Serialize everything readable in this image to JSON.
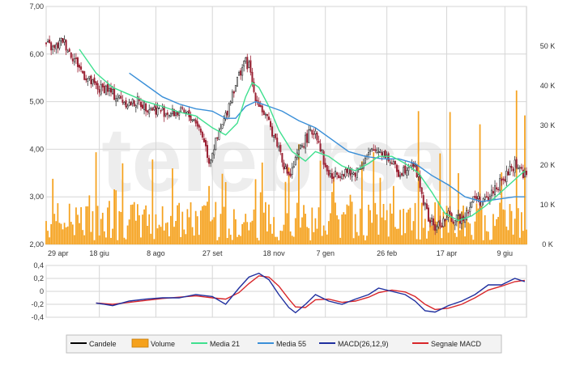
{
  "chart_data": [
    {
      "type": "candlestick",
      "panel": "price",
      "y_ticks": [
        "7,00",
        "6,00",
        "5,00",
        "4,00",
        "3,00",
        "2,00"
      ],
      "y_values": [
        7.0,
        6.0,
        5.0,
        4.0,
        3.0,
        2.0
      ],
      "ylim": [
        2.0,
        7.0
      ],
      "x_ticks": [
        "29 apr",
        "18 giu",
        "8 ago",
        "27 set",
        "18 nov",
        "7 gen",
        "26 feb",
        "17 apr",
        "9 giu"
      ],
      "volume_ticks": [
        "50 K",
        "40 K",
        "30 K",
        "20 K",
        "10 K",
        "0 K"
      ],
      "volume_tick_values": [
        50,
        40,
        30,
        20,
        10,
        0
      ],
      "volume_ylim": [
        0,
        60
      ],
      "colors": {
        "up": "#2f2f2f",
        "down": "#9b2335",
        "volume": "#f5a11c",
        "ma21": "#3fe08f",
        "ma55": "#3a8fd8",
        "grid": "#d6d6d6",
        "watermark": "#ededed"
      },
      "watermark": "telebrsa",
      "close_series": [
        [
          0,
          6.2
        ],
        [
          5,
          6.1
        ],
        [
          10,
          6.3
        ],
        [
          14,
          6.05
        ],
        [
          18,
          5.85
        ],
        [
          22,
          5.6
        ],
        [
          27,
          5.4
        ],
        [
          32,
          5.25
        ],
        [
          36,
          5.3
        ],
        [
          40,
          5.15
        ],
        [
          45,
          5.05
        ],
        [
          50,
          4.95
        ],
        [
          55,
          5.0
        ],
        [
          60,
          4.9
        ],
        [
          65,
          4.85
        ],
        [
          70,
          4.8
        ],
        [
          75,
          4.75
        ],
        [
          80,
          4.78
        ],
        [
          85,
          4.72
        ],
        [
          90,
          4.6
        ],
        [
          95,
          4.2
        ],
        [
          98,
          3.75
        ],
        [
          101,
          4.05
        ],
        [
          104,
          4.3
        ],
        [
          108,
          4.7
        ],
        [
          112,
          5.2
        ],
        [
          116,
          5.55
        ],
        [
          119,
          5.85
        ],
        [
          122,
          5.75
        ],
        [
          125,
          5.2
        ],
        [
          129,
          4.9
        ],
        [
          133,
          4.6
        ],
        [
          137,
          4.3
        ],
        [
          141,
          3.95
        ],
        [
          144,
          3.55
        ],
        [
          147,
          3.45
        ],
        [
          150,
          3.75
        ],
        [
          154,
          4.1
        ],
        [
          158,
          4.3
        ],
        [
          162,
          4.4
        ],
        [
          165,
          4.05
        ],
        [
          168,
          3.6
        ],
        [
          172,
          3.4
        ],
        [
          176,
          3.5
        ],
        [
          180,
          3.55
        ],
        [
          184,
          3.45
        ],
        [
          188,
          3.6
        ],
        [
          192,
          3.8
        ],
        [
          196,
          3.95
        ],
        [
          200,
          4.0
        ],
        [
          204,
          3.9
        ],
        [
          208,
          3.7
        ],
        [
          212,
          3.5
        ],
        [
          216,
          3.6
        ],
        [
          220,
          3.75
        ],
        [
          224,
          3.4
        ],
        [
          227,
          2.9
        ],
        [
          230,
          2.55
        ],
        [
          234,
          2.35
        ],
        [
          238,
          2.45
        ],
        [
          242,
          2.6
        ],
        [
          246,
          2.5
        ],
        [
          250,
          2.55
        ],
        [
          254,
          2.75
        ],
        [
          258,
          3.0
        ],
        [
          262,
          2.9
        ],
        [
          266,
          2.95
        ],
        [
          270,
          3.2
        ],
        [
          274,
          3.3
        ],
        [
          278,
          3.5
        ],
        [
          282,
          3.7
        ],
        [
          285,
          3.6
        ],
        [
          288,
          3.45
        ]
      ],
      "ma21": [
        [
          20,
          6.1
        ],
        [
          30,
          5.6
        ],
        [
          40,
          5.3
        ],
        [
          50,
          5.15
        ],
        [
          60,
          5.0
        ],
        [
          70,
          4.9
        ],
        [
          80,
          4.78
        ],
        [
          90,
          4.7
        ],
        [
          100,
          4.45
        ],
        [
          108,
          4.3
        ],
        [
          115,
          4.55
        ],
        [
          120,
          5.1
        ],
        [
          124,
          5.4
        ],
        [
          128,
          5.3
        ],
        [
          134,
          4.9
        ],
        [
          140,
          4.4
        ],
        [
          148,
          3.95
        ],
        [
          156,
          3.75
        ],
        [
          162,
          3.95
        ],
        [
          170,
          3.85
        ],
        [
          178,
          3.65
        ],
        [
          186,
          3.55
        ],
        [
          194,
          3.7
        ],
        [
          200,
          3.85
        ],
        [
          208,
          3.85
        ],
        [
          216,
          3.7
        ],
        [
          224,
          3.5
        ],
        [
          232,
          3.1
        ],
        [
          240,
          2.65
        ],
        [
          248,
          2.5
        ],
        [
          256,
          2.6
        ],
        [
          264,
          2.8
        ],
        [
          272,
          3.05
        ],
        [
          280,
          3.3
        ],
        [
          288,
          3.55
        ]
      ],
      "ma55": [
        [
          50,
          5.6
        ],
        [
          60,
          5.35
        ],
        [
          70,
          5.1
        ],
        [
          80,
          4.95
        ],
        [
          90,
          4.85
        ],
        [
          100,
          4.8
        ],
        [
          108,
          4.65
        ],
        [
          114,
          4.65
        ],
        [
          120,
          4.9
        ],
        [
          126,
          5.0
        ],
        [
          134,
          4.9
        ],
        [
          142,
          4.8
        ],
        [
          152,
          4.6
        ],
        [
          162,
          4.45
        ],
        [
          172,
          4.2
        ],
        [
          182,
          3.95
        ],
        [
          192,
          3.85
        ],
        [
          202,
          3.8
        ],
        [
          212,
          3.8
        ],
        [
          222,
          3.7
        ],
        [
          232,
          3.45
        ],
        [
          242,
          3.25
        ],
        [
          252,
          3.0
        ],
        [
          262,
          2.9
        ],
        [
          272,
          2.95
        ],
        [
          282,
          3.0
        ],
        [
          288,
          3.0
        ]
      ]
    },
    {
      "type": "line",
      "panel": "macd",
      "y_ticks": [
        "0,4",
        "0,2",
        "0",
        "-0,2",
        "-0,4"
      ],
      "y_values": [
        0.4,
        0.2,
        0,
        -0.2,
        -0.4
      ],
      "ylim": [
        -0.4,
        0.4
      ],
      "series": [
        {
          "name": "MACD(26,12,9)",
          "color": "#1f2f9f",
          "points": [
            [
              30,
              -0.18
            ],
            [
              40,
              -0.22
            ],
            [
              50,
              -0.15
            ],
            [
              60,
              -0.12
            ],
            [
              70,
              -0.1
            ],
            [
              80,
              -0.1
            ],
            [
              90,
              -0.05
            ],
            [
              100,
              -0.08
            ],
            [
              108,
              -0.2
            ],
            [
              116,
              0.05
            ],
            [
              122,
              0.22
            ],
            [
              128,
              0.28
            ],
            [
              134,
              0.18
            ],
            [
              140,
              -0.05
            ],
            [
              146,
              -0.25
            ],
            [
              150,
              -0.33
            ],
            [
              156,
              -0.2
            ],
            [
              162,
              -0.05
            ],
            [
              170,
              -0.15
            ],
            [
              178,
              -0.2
            ],
            [
              186,
              -0.12
            ],
            [
              194,
              -0.05
            ],
            [
              200,
              0.05
            ],
            [
              208,
              0.0
            ],
            [
              216,
              -0.05
            ],
            [
              222,
              -0.15
            ],
            [
              228,
              -0.3
            ],
            [
              234,
              -0.32
            ],
            [
              242,
              -0.22
            ],
            [
              250,
              -0.15
            ],
            [
              258,
              -0.05
            ],
            [
              266,
              0.1
            ],
            [
              274,
              0.1
            ],
            [
              282,
              0.2
            ],
            [
              288,
              0.15
            ]
          ]
        },
        {
          "name": "Segnale MACD",
          "color": "#d8262a",
          "points": [
            [
              30,
              -0.18
            ],
            [
              40,
              -0.2
            ],
            [
              50,
              -0.17
            ],
            [
              60,
              -0.14
            ],
            [
              70,
              -0.11
            ],
            [
              80,
              -0.09
            ],
            [
              90,
              -0.07
            ],
            [
              100,
              -0.1
            ],
            [
              108,
              -0.12
            ],
            [
              116,
              -0.02
            ],
            [
              122,
              0.12
            ],
            [
              128,
              0.24
            ],
            [
              134,
              0.22
            ],
            [
              140,
              0.08
            ],
            [
              146,
              -0.12
            ],
            [
              150,
              -0.24
            ],
            [
              156,
              -0.25
            ],
            [
              162,
              -0.13
            ],
            [
              170,
              -0.12
            ],
            [
              178,
              -0.17
            ],
            [
              186,
              -0.15
            ],
            [
              194,
              -0.09
            ],
            [
              200,
              -0.02
            ],
            [
              208,
              0.02
            ],
            [
              216,
              -0.01
            ],
            [
              222,
              -0.08
            ],
            [
              228,
              -0.2
            ],
            [
              234,
              -0.28
            ],
            [
              242,
              -0.26
            ],
            [
              250,
              -0.2
            ],
            [
              258,
              -0.1
            ],
            [
              266,
              0.02
            ],
            [
              274,
              0.08
            ],
            [
              282,
              0.15
            ],
            [
              288,
              0.17
            ]
          ]
        }
      ]
    }
  ],
  "legend": [
    {
      "label": "Candele",
      "swatch": "line",
      "color": "#000000"
    },
    {
      "label": "Volume",
      "swatch": "box",
      "color": "#f5a11c"
    },
    {
      "label": "Media 21",
      "swatch": "line",
      "color": "#3fe08f"
    },
    {
      "label": "Media 55",
      "swatch": "line",
      "color": "#3a8fd8"
    },
    {
      "label": "MACD(26,12,9)",
      "swatch": "line",
      "color": "#1f2f9f"
    },
    {
      "label": "Segnale MACD",
      "swatch": "line",
      "color": "#d8262a"
    }
  ]
}
